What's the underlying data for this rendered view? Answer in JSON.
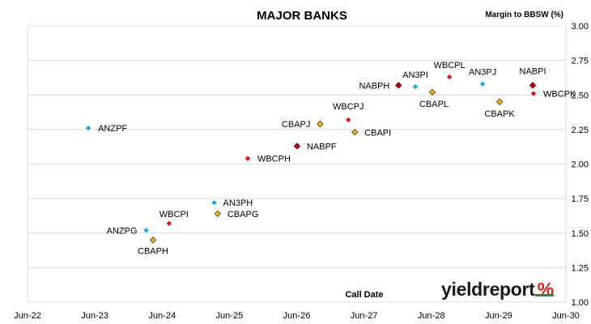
{
  "chart_data": {
    "type": "scatter",
    "title": "MAJOR BANKS",
    "xlabel": "Call Date",
    "ylabel": "Margin to BBSW (%)",
    "x_ticks": [
      "Jun-22",
      "Jun-23",
      "Jun-24",
      "Jun-25",
      "Jun-26",
      "Jun-27",
      "Jun-28",
      "Jun-29",
      "Jun-30"
    ],
    "xlim": [
      "2022-06",
      "2030-06"
    ],
    "y_ticks": [
      "1.00",
      "1.25",
      "1.50",
      "1.75",
      "2.00",
      "2.25",
      "2.50",
      "2.75",
      "3.00"
    ],
    "ylim": [
      1.0,
      3.0
    ],
    "y_axis_position": "right",
    "grid": "horizontal",
    "legend": "none",
    "points": [
      {
        "name": "ANZPF",
        "date": "2023-05-11",
        "y": 2.26,
        "bank": "ANZ"
      },
      {
        "name": "ANZPG",
        "date": "2024-03-20",
        "y": 1.52,
        "bank": "ANZ"
      },
      {
        "name": "CBAPH",
        "date": "2024-04-26",
        "y": 1.45,
        "bank": "CBA"
      },
      {
        "name": "WBCPI",
        "date": "2024-07-22",
        "y": 1.57,
        "bank": "WBC"
      },
      {
        "name": "AN3PH",
        "date": "2025-03-24",
        "y": 1.72,
        "bank": "ANZ"
      },
      {
        "name": "CBAPG",
        "date": "2025-04-12",
        "y": 1.64,
        "bank": "CBA"
      },
      {
        "name": "WBCPH",
        "date": "2025-09-22",
        "y": 2.04,
        "bank": "WBC"
      },
      {
        "name": "NABPF",
        "date": "2026-06-17",
        "y": 2.13,
        "bank": "NAB"
      },
      {
        "name": "CBAPJ",
        "date": "2026-10-20",
        "y": 2.29,
        "bank": "CBA"
      },
      {
        "name": "WBCPJ",
        "date": "2027-03-22",
        "y": 2.32,
        "bank": "WBC"
      },
      {
        "name": "CBAPI",
        "date": "2027-04-26",
        "y": 2.23,
        "bank": "CBA"
      },
      {
        "name": "NABPH",
        "date": "2027-12-20",
        "y": 2.57,
        "bank": "NAB"
      },
      {
        "name": "AN3PI",
        "date": "2028-03-20",
        "y": 2.56,
        "bank": "ANZ"
      },
      {
        "name": "CBAPL",
        "date": "2028-06-20",
        "y": 2.52,
        "bank": "CBA"
      },
      {
        "name": "WBCPL",
        "date": "2028-09-21",
        "y": 2.63,
        "bank": "WBC"
      },
      {
        "name": "AN3PJ",
        "date": "2029-03-20",
        "y": 2.58,
        "bank": "ANZ"
      },
      {
        "name": "CBAPK",
        "date": "2029-06-20",
        "y": 2.45,
        "bank": "CBA"
      },
      {
        "name": "NABPI",
        "date": "2029-12-17",
        "y": 2.57,
        "bank": "NAB"
      },
      {
        "name": "WBCPK",
        "date": "2029-12-21",
        "y": 2.51,
        "bank": "WBC"
      }
    ],
    "bank_colors": {
      "ANZ": {
        "fill": "#1aa3e0",
        "stroke": "#1aa3e0",
        "marker": "small-diamond"
      },
      "CBA": {
        "fill": "#f2b51c",
        "stroke": "#4a3a10",
        "marker": "diamond"
      },
      "NAB": {
        "fill": "#c00000",
        "stroke": "#4a0000",
        "marker": "diamond"
      },
      "WBC": {
        "fill": "#e8101a",
        "stroke": "#e8101a",
        "marker": "small-diamond"
      }
    }
  },
  "brand": {
    "name": "yieldreport",
    "symbol": "%"
  }
}
